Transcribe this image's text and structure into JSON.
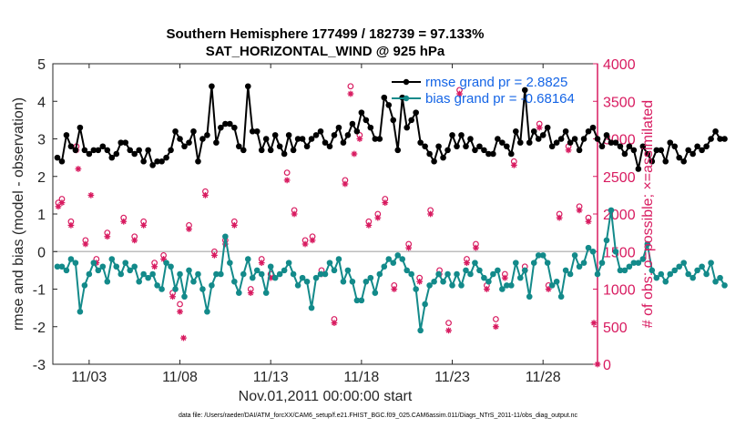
{
  "chart_data": {
    "type": "line",
    "title_line1": "Southern Hemisphere 177499 / 182739 = 97.133%",
    "title_line2": "SAT_HORIZONTAL_WIND @ 925 hPa",
    "xlabel": "Nov.01,2011 00:00:00 start",
    "ylabel_left": "rmse and bias (model - observation)",
    "ylabel_right": "# of obs: o=possible; ×=assimilated",
    "footer": "data file: /Users/raeder/DAI/ATM_forcXX/CAM6_setup/f.e21.FHIST_BGC.f09_025.CAM6assim.011/Diags_NTrS_2011-11/obs_diag_output.nc",
    "xlim": [
      1.0,
      31.0
    ],
    "ylim_left": [
      -3,
      5
    ],
    "ylim_right": [
      0,
      4000
    ],
    "x_ticks": [
      3,
      8,
      13,
      18,
      23,
      28
    ],
    "x_tick_labels": [
      "11/03",
      "11/08",
      "11/13",
      "11/18",
      "11/23",
      "11/28"
    ],
    "y_left_ticks": [
      "-3",
      "-2",
      "-1",
      "0",
      "1",
      "2",
      "3",
      "4",
      "5"
    ],
    "y_right_ticks": [
      "0",
      "500",
      "1000",
      "1500",
      "2000",
      "2500",
      "3000",
      "3500",
      "4000"
    ],
    "x_start": 1.25,
    "x_step": 0.25,
    "colors": {
      "rmse": "#000000",
      "bias": "#138a8a",
      "obs": "#d81b60",
      "legend_text": "#1565e6",
      "zero_line": "#bdbdbd"
    },
    "series": [
      {
        "name": "rmse grand pr = 2.8825",
        "axis": "left",
        "values": [
          2.5,
          2.4,
          3.1,
          2.8,
          2.7,
          3.3,
          2.7,
          2.6,
          2.7,
          2.7,
          2.8,
          2.7,
          2.5,
          2.6,
          2.9,
          2.9,
          2.7,
          2.6,
          2.7,
          2.4,
          2.7,
          2.3,
          2.4,
          2.4,
          2.5,
          2.7,
          3.2,
          3.0,
          2.8,
          2.9,
          3.2,
          2.4,
          3.0,
          3.1,
          4.4,
          2.9,
          3.3,
          3.4,
          3.4,
          3.3,
          2.8,
          2.7,
          4.4,
          3.2,
          3.2,
          2.7,
          3.0,
          2.7,
          3.1,
          2.8,
          2.6,
          3.1,
          2.7,
          3.0,
          3.0,
          2.8,
          3.0,
          3.1,
          3.2,
          2.9,
          2.8,
          3.1,
          3.3,
          2.9,
          3.1,
          3.4,
          3.2,
          3.7,
          3.5,
          3.3,
          3.0,
          3.0,
          4.1,
          3.9,
          3.5,
          2.7,
          4.1,
          3.3,
          3.5,
          3.7,
          2.9,
          2.8,
          2.6,
          2.4,
          2.8,
          2.5,
          2.7,
          3.1,
          2.8,
          3.1,
          2.8,
          3.0,
          2.7,
          2.8,
          2.7,
          2.6,
          2.6,
          3.0,
          2.9,
          2.8,
          2.6,
          3.2,
          2.9,
          4.3,
          2.9,
          3.2,
          3.0,
          3.1,
          3.3,
          2.8,
          2.9,
          3.0,
          3.2,
          2.9,
          3.0,
          2.7,
          3.0,
          3.2,
          3.3,
          3.0,
          2.8,
          3.1,
          2.9,
          2.9,
          2.8,
          2.6,
          2.8,
          2.7,
          2.2,
          2.8,
          2.6,
          2.4,
          2.7,
          2.7,
          2.4,
          2.9,
          2.8,
          2.5,
          2.4,
          2.7,
          2.6,
          2.8,
          2.7,
          2.8,
          3.0,
          3.2,
          3.0,
          3.0
        ]
      },
      {
        "name": "bias grand pr = -0.68164",
        "axis": "left",
        "values": [
          -0.4,
          -0.4,
          -0.5,
          -0.2,
          -0.3,
          -1.6,
          -0.9,
          -0.6,
          -0.3,
          -0.5,
          -0.4,
          -0.8,
          -0.2,
          -0.4,
          -0.6,
          -0.3,
          -0.5,
          -0.4,
          -0.8,
          -0.6,
          -0.7,
          -0.6,
          -0.9,
          -1.0,
          -0.3,
          -0.4,
          -1.0,
          -0.6,
          -1.2,
          -0.5,
          -0.8,
          -0.6,
          -1.0,
          -1.6,
          -0.9,
          -0.6,
          -0.6,
          0.4,
          -0.3,
          -0.8,
          -1.1,
          -0.6,
          -0.2,
          -0.7,
          -0.5,
          -0.6,
          -1.1,
          -0.4,
          -0.7,
          -0.6,
          -0.5,
          -0.3,
          -0.6,
          -0.9,
          -0.7,
          -0.8,
          -1.5,
          -0.7,
          -0.6,
          -0.6,
          -0.3,
          -0.5,
          -0.2,
          -0.8,
          -0.5,
          -0.8,
          -1.3,
          -1.3,
          -0.8,
          -0.7,
          -1.1,
          -0.6,
          -0.4,
          -0.2,
          -0.3,
          -0.1,
          -0.2,
          -0.5,
          -0.6,
          -1.0,
          -2.1,
          -1.4,
          -0.9,
          -0.8,
          -0.6,
          -0.8,
          -0.6,
          -0.9,
          -0.6,
          -0.9,
          -0.5,
          -0.6,
          -0.3,
          -0.5,
          -0.7,
          -0.8,
          -0.6,
          -0.5,
          -1.0,
          -0.9,
          -0.9,
          -0.3,
          -0.7,
          -0.5,
          -1.2,
          -0.3,
          -0.1,
          -0.1,
          -0.3,
          -0.9,
          -0.8,
          -1.2,
          -0.5,
          -0.6,
          -0.1,
          -0.4,
          -0.3,
          0.1,
          0.0,
          -0.6,
          -0.3,
          0.3,
          1.1,
          0.0,
          -0.5,
          -0.5,
          -0.4,
          -0.3,
          -0.3,
          -0.2,
          0.2,
          -0.5,
          -0.7,
          -0.6,
          -0.8,
          -0.6,
          -0.5,
          -0.4,
          -0.3,
          -0.6,
          -0.7,
          -0.5,
          -0.4,
          -0.6,
          -0.3,
          -0.8,
          -0.7,
          -0.9
        ]
      }
    ],
    "obs_possible": [
      {
        "x": 1.3,
        "y": 2150
      },
      {
        "x": 1.5,
        "y": 2200
      },
      {
        "x": 2.0,
        "y": 1900
      },
      {
        "x": 2.3,
        "y": 2900
      },
      {
        "x": 2.8,
        "y": 1650
      },
      {
        "x": 3.4,
        "y": 1400
      },
      {
        "x": 4.0,
        "y": 1750
      },
      {
        "x": 4.9,
        "y": 1950
      },
      {
        "x": 5.5,
        "y": 1700
      },
      {
        "x": 6.0,
        "y": 1900
      },
      {
        "x": 6.6,
        "y": 1350
      },
      {
        "x": 7.1,
        "y": 1450
      },
      {
        "x": 7.6,
        "y": 950
      },
      {
        "x": 8.0,
        "y": 800
      },
      {
        "x": 8.5,
        "y": 1850
      },
      {
        "x": 9.4,
        "y": 2300
      },
      {
        "x": 9.9,
        "y": 1500
      },
      {
        "x": 10.5,
        "y": 1650
      },
      {
        "x": 11.0,
        "y": 1900
      },
      {
        "x": 11.9,
        "y": 1000
      },
      {
        "x": 12.5,
        "y": 1400
      },
      {
        "x": 13.0,
        "y": 1200
      },
      {
        "x": 13.9,
        "y": 2550
      },
      {
        "x": 14.3,
        "y": 2050
      },
      {
        "x": 14.9,
        "y": 1650
      },
      {
        "x": 15.3,
        "y": 1700
      },
      {
        "x": 15.8,
        "y": 1250
      },
      {
        "x": 16.5,
        "y": 600
      },
      {
        "x": 17.1,
        "y": 2450
      },
      {
        "x": 17.4,
        "y": 3700
      },
      {
        "x": 17.9,
        "y": 3050
      },
      {
        "x": 18.4,
        "y": 1900
      },
      {
        "x": 18.9,
        "y": 2000
      },
      {
        "x": 19.3,
        "y": 2200
      },
      {
        "x": 19.8,
        "y": 1050
      },
      {
        "x": 20.6,
        "y": 1600
      },
      {
        "x": 21.2,
        "y": 1150
      },
      {
        "x": 21.8,
        "y": 2050
      },
      {
        "x": 22.3,
        "y": 1250
      },
      {
        "x": 22.8,
        "y": 550
      },
      {
        "x": 23.4,
        "y": 3650
      },
      {
        "x": 23.8,
        "y": 1400
      },
      {
        "x": 24.3,
        "y": 1600
      },
      {
        "x": 24.9,
        "y": 1050
      },
      {
        "x": 25.4,
        "y": 600
      },
      {
        "x": 25.9,
        "y": 1200
      },
      {
        "x": 26.4,
        "y": 2700
      },
      {
        "x": 27.0,
        "y": 1300
      },
      {
        "x": 27.8,
        "y": 3200
      },
      {
        "x": 28.3,
        "y": 1050
      },
      {
        "x": 28.9,
        "y": 2000
      },
      {
        "x": 29.4,
        "y": 2900
      },
      {
        "x": 30.0,
        "y": 2100
      },
      {
        "x": 30.5,
        "y": 1950
      }
    ],
    "obs_assimilated": [
      {
        "x": 1.3,
        "y": 2100
      },
      {
        "x": 1.5,
        "y": 2150
      },
      {
        "x": 2.0,
        "y": 1850
      },
      {
        "x": 2.3,
        "y": 2850
      },
      {
        "x": 2.4,
        "y": 2600
      },
      {
        "x": 2.8,
        "y": 1600
      },
      {
        "x": 3.1,
        "y": 2250
      },
      {
        "x": 3.4,
        "y": 1350
      },
      {
        "x": 4.0,
        "y": 1700
      },
      {
        "x": 4.9,
        "y": 1900
      },
      {
        "x": 5.5,
        "y": 1650
      },
      {
        "x": 6.0,
        "y": 1850
      },
      {
        "x": 6.6,
        "y": 1300
      },
      {
        "x": 7.1,
        "y": 1400
      },
      {
        "x": 7.6,
        "y": 900
      },
      {
        "x": 8.0,
        "y": 700
      },
      {
        "x": 8.2,
        "y": 350
      },
      {
        "x": 8.5,
        "y": 1800
      },
      {
        "x": 9.4,
        "y": 2250
      },
      {
        "x": 9.9,
        "y": 1450
      },
      {
        "x": 10.5,
        "y": 1600
      },
      {
        "x": 11.0,
        "y": 1850
      },
      {
        "x": 11.9,
        "y": 950
      },
      {
        "x": 12.5,
        "y": 1350
      },
      {
        "x": 13.0,
        "y": 1150
      },
      {
        "x": 13.9,
        "y": 2450
      },
      {
        "x": 14.3,
        "y": 2000
      },
      {
        "x": 14.9,
        "y": 1600
      },
      {
        "x": 15.3,
        "y": 1650
      },
      {
        "x": 15.8,
        "y": 1200
      },
      {
        "x": 16.5,
        "y": 550
      },
      {
        "x": 17.1,
        "y": 2400
      },
      {
        "x": 17.4,
        "y": 3600
      },
      {
        "x": 17.6,
        "y": 2800
      },
      {
        "x": 17.9,
        "y": 3000
      },
      {
        "x": 18.4,
        "y": 1850
      },
      {
        "x": 18.9,
        "y": 1950
      },
      {
        "x": 19.3,
        "y": 2150
      },
      {
        "x": 19.8,
        "y": 1000
      },
      {
        "x": 20.6,
        "y": 1550
      },
      {
        "x": 21.2,
        "y": 1100
      },
      {
        "x": 21.8,
        "y": 2000
      },
      {
        "x": 22.3,
        "y": 1200
      },
      {
        "x": 22.8,
        "y": 450
      },
      {
        "x": 23.4,
        "y": 3600
      },
      {
        "x": 23.8,
        "y": 1350
      },
      {
        "x": 24.3,
        "y": 1550
      },
      {
        "x": 24.9,
        "y": 1000
      },
      {
        "x": 25.4,
        "y": 500
      },
      {
        "x": 25.9,
        "y": 1150
      },
      {
        "x": 26.4,
        "y": 2650
      },
      {
        "x": 27.0,
        "y": 1250
      },
      {
        "x": 27.8,
        "y": 3150
      },
      {
        "x": 28.3,
        "y": 1000
      },
      {
        "x": 28.9,
        "y": 1950
      },
      {
        "x": 29.4,
        "y": 2850
      },
      {
        "x": 30.0,
        "y": 2050
      },
      {
        "x": 30.5,
        "y": 1900
      },
      {
        "x": 30.8,
        "y": 550
      },
      {
        "x": 31.0,
        "y": 0
      }
    ]
  }
}
